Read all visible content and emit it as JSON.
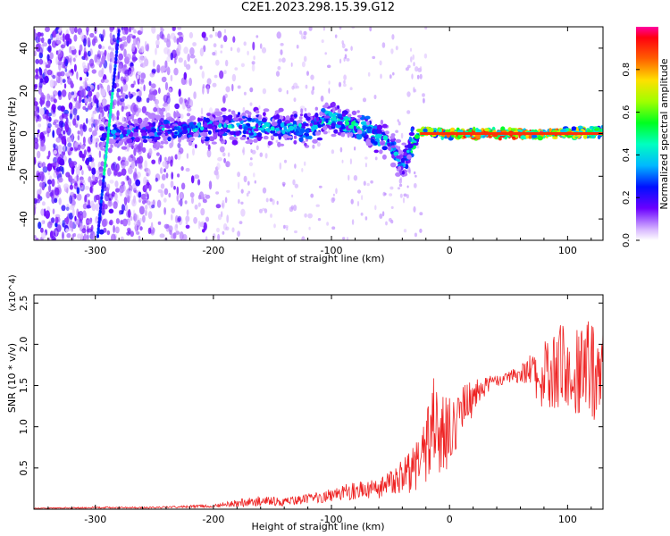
{
  "title": "C2E1.2023.298.15.39.G12",
  "chart_data": [
    {
      "type": "heatmap",
      "xlabel": "Height of straight line (km)",
      "ylabel": "Frequency (Hz)",
      "xlim": [
        -352,
        130
      ],
      "ylim": [
        -50,
        50
      ],
      "x_ticks": [
        -300,
        -200,
        -100,
        0,
        100
      ],
      "x_tick_labels": [
        "-300",
        "-200",
        "-100",
        "0",
        "100"
      ],
      "y_ticks": [
        -40,
        -20,
        0,
        20,
        40
      ],
      "y_tick_labels": [
        "-40",
        "-20",
        "0",
        "20",
        "40"
      ],
      "colorbar": {
        "label": "Normalized spectral amplitude",
        "range": [
          0,
          1
        ],
        "ticks": [
          0.0,
          0.2,
          0.4,
          0.6,
          0.8
        ],
        "tick_labels": [
          "0.0",
          "0.2",
          "0.4",
          "0.6",
          "0.8"
        ]
      },
      "ridge": [
        {
          "x": -280,
          "f": 0,
          "amp": 0.35
        },
        {
          "x": -240,
          "f": 2,
          "amp": 0.4
        },
        {
          "x": -200,
          "f": 3,
          "amp": 0.42
        },
        {
          "x": -160,
          "f": 3,
          "amp": 0.45
        },
        {
          "x": -120,
          "f": 2,
          "amp": 0.45
        },
        {
          "x": -100,
          "f": 7,
          "amp": 0.5
        },
        {
          "x": -70,
          "f": 2,
          "amp": 0.5
        },
        {
          "x": -50,
          "f": -5,
          "amp": 0.45
        },
        {
          "x": -40,
          "f": -15,
          "amp": 0.35
        },
        {
          "x": -25,
          "f": 1,
          "amp": 0.7
        },
        {
          "x": 0,
          "f": 0,
          "amp": 0.9
        },
        {
          "x": 50,
          "f": 0,
          "amp": 0.95
        },
        {
          "x": 100,
          "f": 0,
          "amp": 0.9
        },
        {
          "x": 130,
          "f": 1,
          "amp": 0.55
        }
      ],
      "steep_feature": [
        {
          "x": -298,
          "f": -48
        },
        {
          "x": -280,
          "f": 48
        }
      ]
    },
    {
      "type": "line",
      "xlabel": "Height of straight line (km)",
      "ylabel": "SNR (10 * v/v)",
      "y_multiplier": "(x10^4)",
      "xlim": [
        -352,
        130
      ],
      "ylim": [
        0,
        2.6
      ],
      "x_ticks": [
        -300,
        -200,
        -100,
        0,
        100
      ],
      "x_tick_labels": [
        "-300",
        "-200",
        "-100",
        "0",
        "100"
      ],
      "y_ticks": [
        0.5,
        1.0,
        1.5,
        2.0,
        2.5
      ],
      "y_tick_labels": [
        "0.5",
        "1.0",
        "1.5",
        "2.0",
        "2.5"
      ],
      "color": "#ee2222",
      "series": [
        {
          "x": [
            -352,
            -300,
            -250,
            -200,
            -180,
            -160,
            -140,
            -120,
            -100,
            -80,
            -60,
            -45,
            -30,
            -20,
            -15,
            -10,
            0,
            10,
            20,
            30,
            40,
            50,
            60,
            70,
            80,
            90,
            100,
            110,
            120,
            130
          ],
          "y": [
            0.01,
            0.02,
            0.02,
            0.04,
            0.07,
            0.1,
            0.09,
            0.12,
            0.18,
            0.22,
            0.25,
            0.35,
            0.5,
            0.7,
            1.1,
            0.9,
            0.9,
            1.2,
            1.35,
            1.5,
            1.55,
            1.6,
            1.65,
            1.7,
            1.6,
            1.7,
            1.75,
            1.75,
            1.7,
            1.6
          ],
          "spread": [
            0.005,
            0.01,
            0.01,
            0.02,
            0.05,
            0.06,
            0.05,
            0.06,
            0.09,
            0.11,
            0.12,
            0.18,
            0.3,
            0.4,
            0.6,
            0.5,
            0.45,
            0.3,
            0.25,
            0.12,
            0.08,
            0.06,
            0.12,
            0.2,
            0.55,
            0.6,
            0.7,
            0.75,
            0.75,
            0.8
          ]
        }
      ]
    }
  ]
}
